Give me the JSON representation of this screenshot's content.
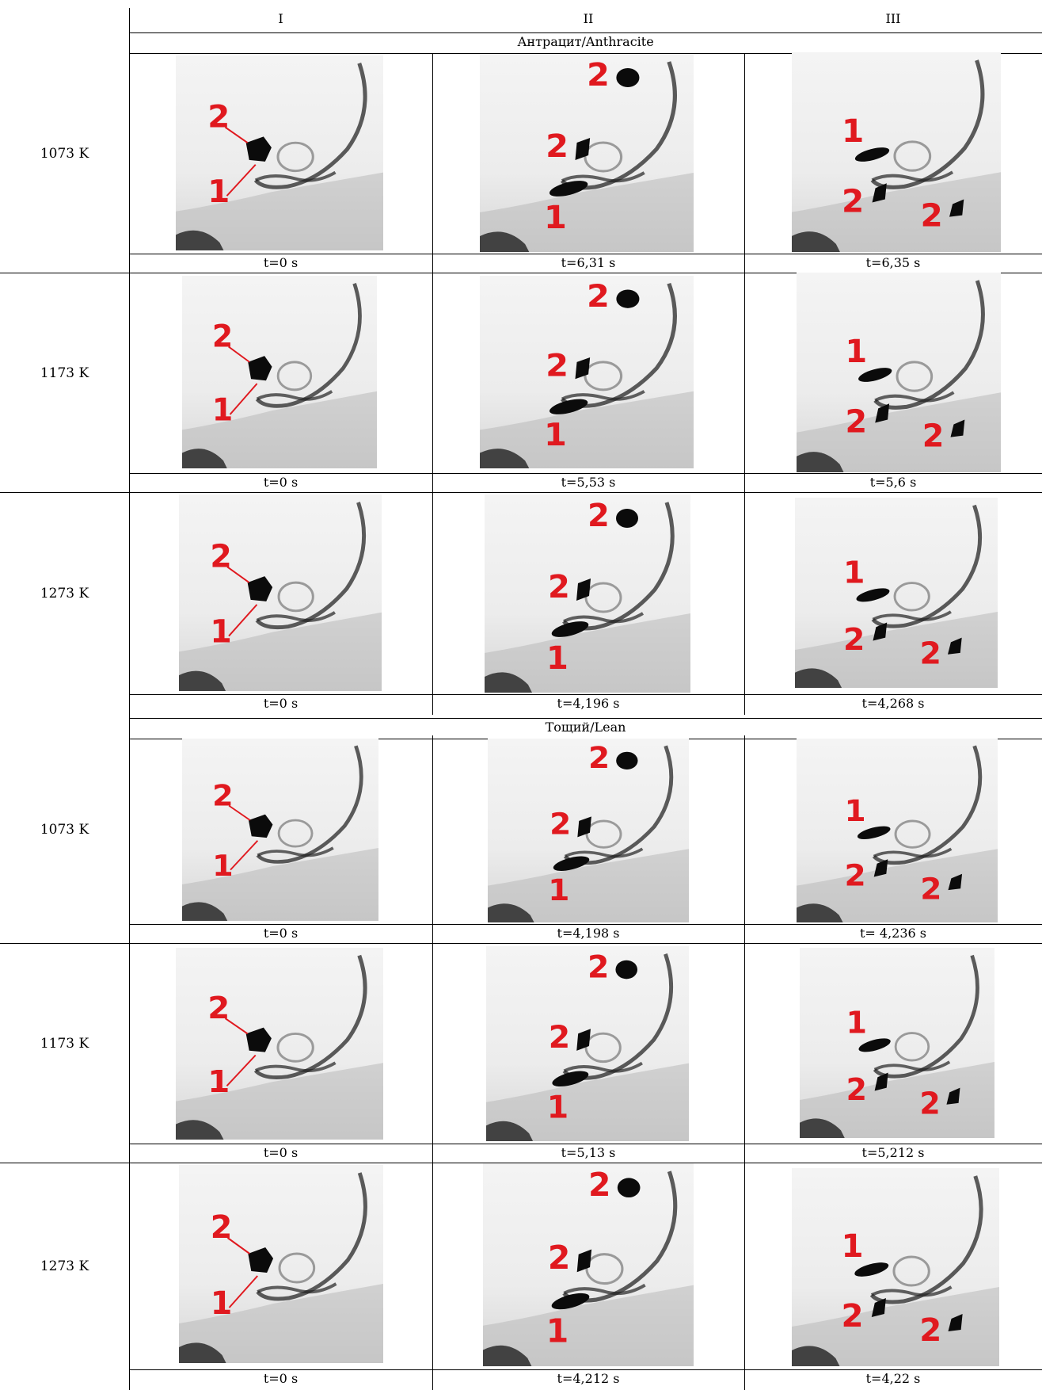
{
  "columns": [
    "I",
    "II",
    "III"
  ],
  "sections": [
    {
      "name": "Антрацит/Anthracite",
      "rows": [
        {
          "label": "1073 K",
          "times": [
            "t=0 s",
            "t=6,31 s",
            "t=6,35 s"
          ]
        },
        {
          "label": "1173 K",
          "times": [
            "t=0 s",
            "t=5,53 s",
            "t=5,6 s"
          ]
        },
        {
          "label": "1273 K",
          "times": [
            "t=0 s",
            "t=4,196 s",
            "t=4,268 s"
          ]
        }
      ]
    },
    {
      "name": "Тощий/Lean",
      "rows": [
        {
          "label": "1073 K",
          "times": [
            "t=0 s",
            "t=4,198 s",
            "t= 4,236 s"
          ]
        },
        {
          "label": "1173 K",
          "times": [
            "t=0 s",
            "t=5,13 s",
            "t=5,212 s"
          ]
        },
        {
          "label": "1273 K",
          "times": [
            "t=0 s",
            "t=4,212 s",
            "t=4,22 s"
          ]
        }
      ]
    }
  ],
  "marker_labels": {
    "particle_1": "1",
    "particle_2": "2"
  },
  "colors": {
    "marker": "#e0191f",
    "particle": "#0b0b0b",
    "grid": "#000000"
  }
}
